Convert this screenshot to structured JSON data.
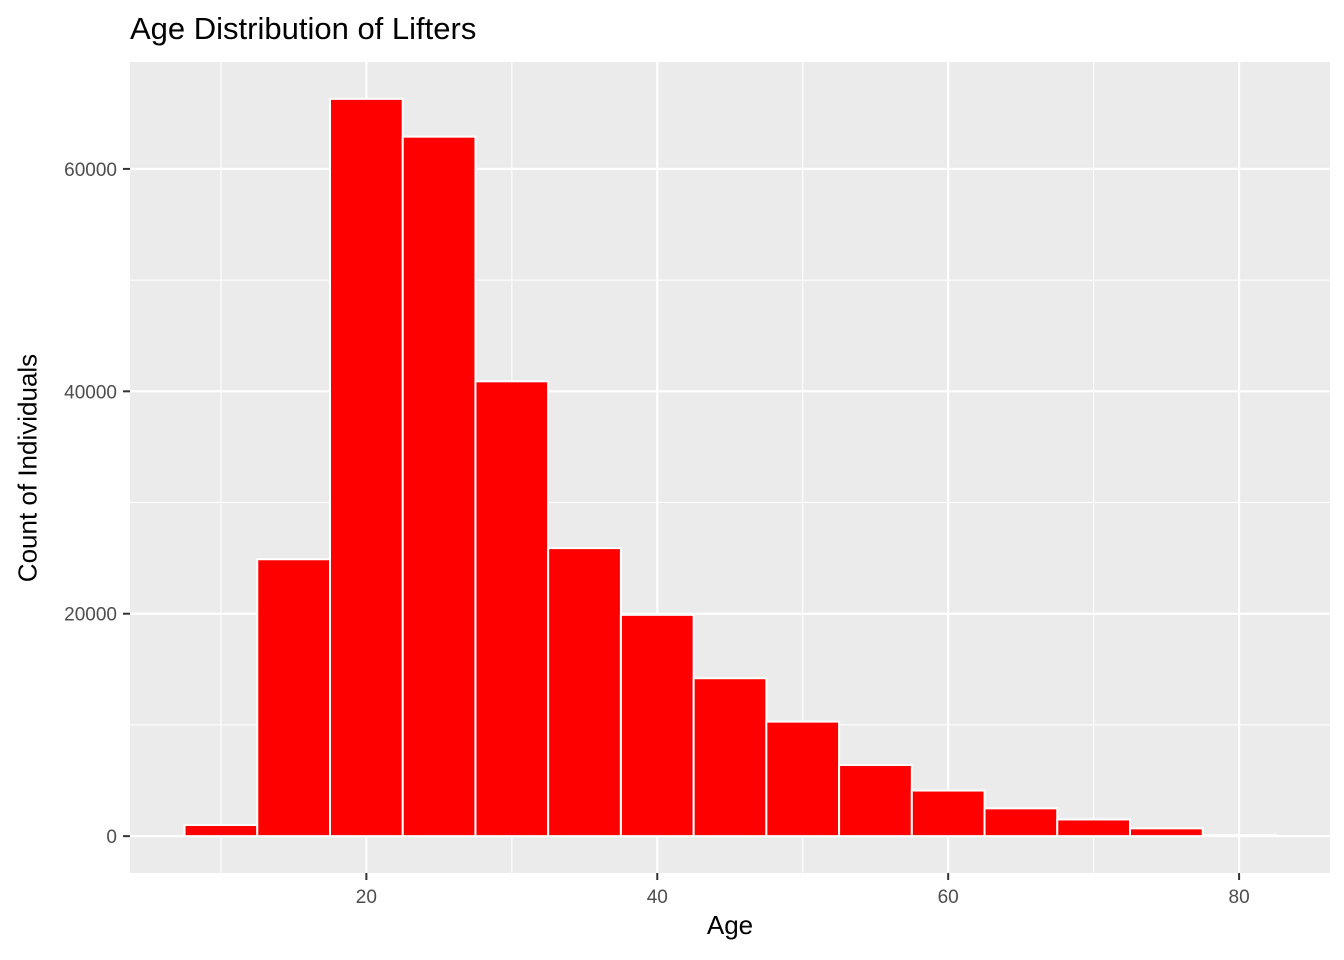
{
  "chart_data": {
    "type": "bar",
    "title": "Age Distribution of Lifters",
    "xlabel": "Age",
    "ylabel": "Count of Individuals",
    "bin_width": 5,
    "bins": [
      {
        "start": 7.5,
        "end": 12.5,
        "count": 1000
      },
      {
        "start": 12.5,
        "end": 17.5,
        "count": 24900
      },
      {
        "start": 17.5,
        "end": 22.5,
        "count": 66300
      },
      {
        "start": 22.5,
        "end": 27.5,
        "count": 62900
      },
      {
        "start": 27.5,
        "end": 32.5,
        "count": 40900
      },
      {
        "start": 32.5,
        "end": 37.5,
        "count": 25900
      },
      {
        "start": 37.5,
        "end": 42.5,
        "count": 19900
      },
      {
        "start": 42.5,
        "end": 47.5,
        "count": 14200
      },
      {
        "start": 47.5,
        "end": 52.5,
        "count": 10300
      },
      {
        "start": 52.5,
        "end": 57.5,
        "count": 6400
      },
      {
        "start": 57.5,
        "end": 62.5,
        "count": 4100
      },
      {
        "start": 62.5,
        "end": 67.5,
        "count": 2500
      },
      {
        "start": 67.5,
        "end": 72.5,
        "count": 1500
      },
      {
        "start": 72.5,
        "end": 77.5,
        "count": 700
      },
      {
        "start": 77.5,
        "end": 82.5,
        "count": 100
      }
    ],
    "xlim": [
      3.75,
      86.25
    ],
    "ylim": [
      -3315,
      69615
    ],
    "x_major_ticks": [
      20,
      40,
      60,
      80
    ],
    "x_minor_ticks": [
      10,
      30,
      50,
      70
    ],
    "y_major_ticks": [
      0,
      20000,
      40000,
      60000
    ],
    "y_minor_ticks": [
      10000,
      30000,
      50000
    ],
    "x_tick_labels": [
      "20",
      "40",
      "60",
      "80"
    ],
    "y_tick_labels": [
      "0",
      "20000",
      "40000",
      "60000"
    ],
    "grid": true,
    "legend": "none",
    "colors": {
      "bar_fill": "#FF0000",
      "bar_outline": "#FFFFFF",
      "panel_background": "#EBEBEB",
      "grid_line": "#FFFFFF",
      "tick_text": "#4D4D4D",
      "tick_mark": "#333333"
    }
  }
}
